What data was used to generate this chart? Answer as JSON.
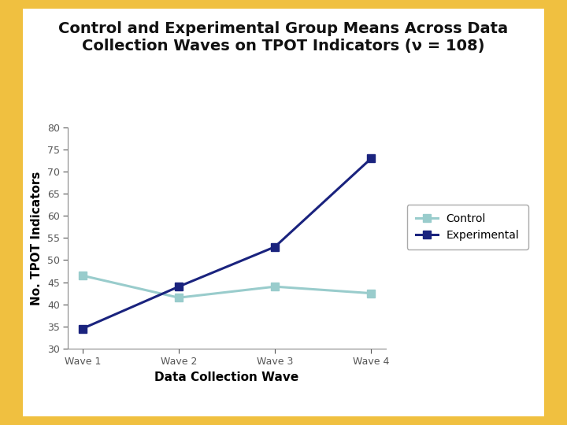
{
  "title_line1": "Control and Experimental Group Means Across Data",
  "title_line2": "Collection Waves on TPOT Indicators (ν = 108)",
  "xlabel": "Data Collection Wave",
  "ylabel": "No. TPOT Indicators",
  "x_labels": [
    "Wave 1",
    "Wave 2",
    "Wave 3",
    "Wave 4"
  ],
  "control_values": [
    46.5,
    41.5,
    44.0,
    42.5
  ],
  "experimental_values": [
    34.5,
    44.0,
    53.0,
    73.0
  ],
  "control_color": "#99CCCC",
  "experimental_color": "#1A237E",
  "ylim": [
    30,
    80
  ],
  "yticks": [
    30,
    35,
    40,
    45,
    50,
    55,
    60,
    65,
    70,
    75,
    80
  ],
  "background_outer": "#F0C040",
  "background_inner": "#FFFFFF",
  "title_fontsize": 14,
  "axis_label_fontsize": 11,
  "tick_fontsize": 9,
  "legend_fontsize": 10,
  "line_width": 2.2,
  "marker_size": 7
}
